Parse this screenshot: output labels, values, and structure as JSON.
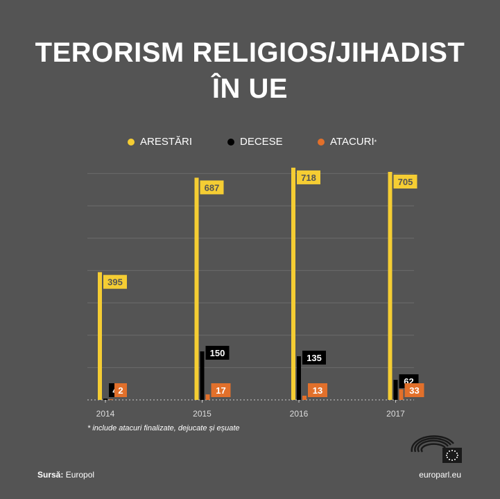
{
  "title_line1": "TERORISM RELIGIOS/JIHADIST",
  "title_line2": "ÎN UE",
  "legend": [
    {
      "label": "ARESTĂRI",
      "color": "#F5CD33"
    },
    {
      "label": "DECESE",
      "color": "#000000"
    },
    {
      "label": "ATACURI",
      "sup": "*",
      "color": "#E2702B"
    }
  ],
  "footnote": "include atacuri finalizate, dejucate și eșuate",
  "footnote_mark": "*",
  "source_label": "Sursă:",
  "source_value": "Europol",
  "site": "europarl.eu",
  "chart_data": {
    "type": "bar",
    "categories": [
      "2014",
      "2015",
      "2016",
      "2017"
    ],
    "series": [
      {
        "name": "ARESTĂRI",
        "values": [
          395,
          687,
          718,
          705
        ],
        "color": "#F5CD33",
        "label_bg": "#F5CD33",
        "label_fg": "#545454"
      },
      {
        "name": "DECESE",
        "values": [
          4,
          150,
          135,
          62
        ],
        "color": "#000000",
        "label_bg": "#000000",
        "label_fg": "#ffffff"
      },
      {
        "name": "ATACURI",
        "values": [
          2,
          17,
          13,
          33
        ],
        "color": "#E2702B",
        "label_bg": "#E2702B",
        "label_fg": "#ffffff"
      }
    ],
    "ylim": [
      0,
      720
    ],
    "grid": true,
    "legend_position": "top-center"
  }
}
